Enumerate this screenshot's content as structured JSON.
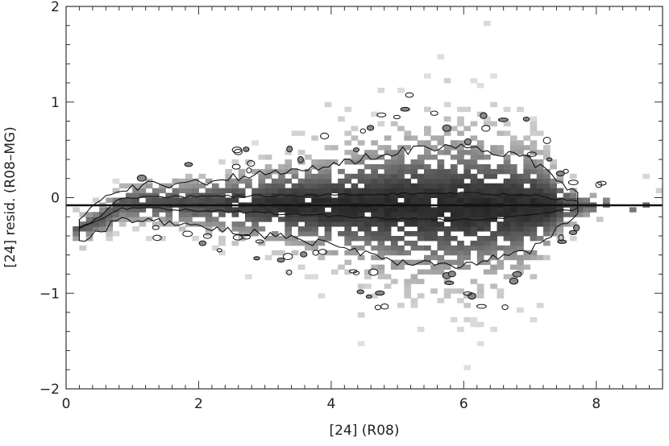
{
  "chart_data": {
    "type": "heatmap",
    "title": "",
    "xlabel": "[24] (R08)",
    "ylabel": "[24] resid. (R08–MG)",
    "xlim": [
      0,
      9
    ],
    "ylim": [
      -2,
      2
    ],
    "x_ticks": [
      {
        "value": 0,
        "label": "0"
      },
      {
        "value": 2,
        "label": "2"
      },
      {
        "value": 4,
        "label": "4"
      },
      {
        "value": 6,
        "label": "6"
      },
      {
        "value": 8,
        "label": "8"
      }
    ],
    "y_ticks": [
      {
        "value": -2,
        "label": "−2"
      },
      {
        "value": -1,
        "label": "−1"
      },
      {
        "value": 0,
        "label": "0"
      },
      {
        "value": 1,
        "label": "1"
      },
      {
        "value": 2,
        "label": "2"
      }
    ],
    "x_minor_step": 0.2,
    "y_minor_step": 0.2,
    "reference_line": {
      "y": -0.08,
      "x_range": [
        0,
        9
      ]
    },
    "density_profile": [
      {
        "x": 0.2,
        "center": -0.32,
        "inner_half_width": 0.0,
        "outer_half_width": 0.12
      },
      {
        "x": 0.5,
        "center": -0.22,
        "inner_half_width": 0.02,
        "outer_half_width": 0.14
      },
      {
        "x": 0.8,
        "center": -0.06,
        "inner_half_width": 0.05,
        "outer_half_width": 0.16
      },
      {
        "x": 1.2,
        "center": -0.05,
        "inner_half_width": 0.06,
        "outer_half_width": 0.18
      },
      {
        "x": 2.0,
        "center": -0.06,
        "inner_half_width": 0.07,
        "outer_half_width": 0.22
      },
      {
        "x": 3.0,
        "center": -0.07,
        "inner_half_width": 0.09,
        "outer_half_width": 0.32
      },
      {
        "x": 4.0,
        "center": -0.08,
        "inner_half_width": 0.11,
        "outer_half_width": 0.42
      },
      {
        "x": 5.0,
        "center": -0.09,
        "inner_half_width": 0.13,
        "outer_half_width": 0.58
      },
      {
        "x": 6.0,
        "center": -0.09,
        "inner_half_width": 0.14,
        "outer_half_width": 0.62
      },
      {
        "x": 7.0,
        "center": -0.08,
        "inner_half_width": 0.11,
        "outer_half_width": 0.48
      },
      {
        "x": 7.5,
        "center": -0.08,
        "inner_half_width": 0.06,
        "outer_half_width": 0.2
      },
      {
        "x": 7.8,
        "center": -0.08,
        "inner_half_width": 0.02,
        "outer_half_width": 0.1
      }
    ],
    "grid": false,
    "legend": "none"
  }
}
